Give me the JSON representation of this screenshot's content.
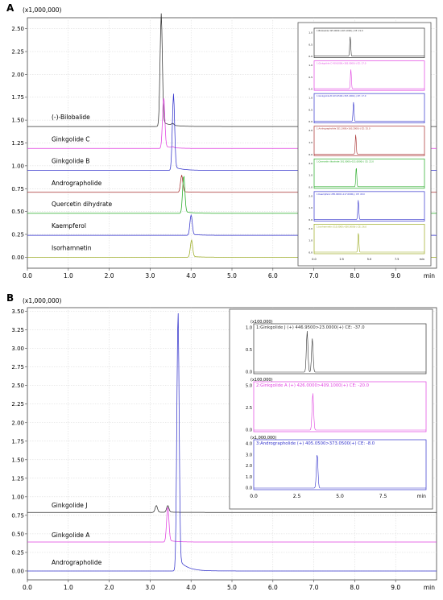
{
  "panels": [
    {
      "letter": "A",
      "multiplier": "(x1,000,000)",
      "x_ticks": [
        "0.0",
        "1.0",
        "2.0",
        "3.0",
        "4.0",
        "5.0",
        "6.0",
        "7.0",
        "8.0",
        "9.0"
      ],
      "x_unit": "min",
      "y_ticks": [
        "0.00",
        "0.25",
        "0.50",
        "0.75",
        "1.00",
        "1.25",
        "1.50",
        "1.75",
        "2.00",
        "2.25",
        "2.50"
      ],
      "traces": [
        {
          "name": "(-)-Bilobalide",
          "color": "#333333",
          "baseline": 1.43,
          "peaks": [
            [
              3.27,
              1.18
            ],
            [
              3.55,
              0.02
            ]
          ]
        },
        {
          "name": "Ginkgolide C",
          "color": "#e040e0",
          "baseline": 1.19,
          "peaks": [
            [
              3.33,
              0.55
            ],
            [
              3.55,
              0.01
            ]
          ]
        },
        {
          "name": "Ginkgolide B",
          "color": "#3333cc",
          "baseline": 0.95,
          "peaks": [
            [
              3.57,
              0.8
            ]
          ]
        },
        {
          "name": "Andrographolide",
          "color": "#a52a2a",
          "baseline": 0.71,
          "peaks": [
            [
              3.77,
              0.18
            ]
          ]
        },
        {
          "name": "Quercetin dihydrate",
          "color": "#22aa22",
          "baseline": 0.48,
          "peaks": [
            [
              3.82,
              0.4
            ]
          ]
        },
        {
          "name": "Kaempferol",
          "color": "#3333cc",
          "baseline": 0.24,
          "peaks": [
            [
              4.0,
              0.22
            ]
          ]
        },
        {
          "name": "Isorhamnetin",
          "color": "#9aaa20",
          "baseline": 0.0,
          "peaks": [
            [
              4.01,
              0.18
            ]
          ]
        }
      ],
      "inset": {
        "rows": [
          {
            "color": "#333333",
            "caption": "1:Bilobalide 325.0000>163.1000(-) CE: 21.0",
            "y_ticks": [
              "1.0",
              "0.5",
              "0.0"
            ]
          },
          {
            "color": "#e040e0",
            "caption": "1:Ginkgolide C 439.0000>383.0000(-) CE: 17.0",
            "y_ticks": [
              "1.0",
              "0.5",
              "0.0"
            ]
          },
          {
            "color": "#3333cc",
            "caption": "1:Ginkgolide B 423.0500>367.2000(-) CE: 17.0",
            "y_ticks": [
              "1.0",
              "0.5",
              "0.0"
            ]
          },
          {
            "color": "#a52a2a",
            "caption": "1:Andrographolide 351.1900>163.2000(-) CE: 25.0",
            "y_ticks": [
              "2.0",
              "1.0",
              "0.0"
            ]
          },
          {
            "color": "#22aa22",
            "caption": "1:Quercetin dihydrate 301.0000>151.0000(-) CE: 22.0",
            "y_ticks": [
              "2.0",
              "1.0",
              "0.0"
            ]
          },
          {
            "color": "#3333cc",
            "caption": "1:Kaempferol 285.0000>117.0000(-) CE: 45.0",
            "y_ticks": [
              "2.0",
              "1.0",
              "0.0"
            ]
          },
          {
            "color": "#9aaa20",
            "caption": "1:Isorhamnetin 315.0000>300.0000(-) CE: 26.0",
            "y_ticks": [
              "2.0",
              "1.0",
              "0.0"
            ]
          }
        ],
        "x_ticks": [
          "0.0",
          "2.5",
          "5.0",
          "7.5"
        ],
        "x_unit": "min"
      }
    },
    {
      "letter": "B",
      "multiplier": "(x1,000,000)",
      "x_ticks": [
        "0.0",
        "1.0",
        "2.0",
        "3.0",
        "4.0",
        "5.0",
        "6.0",
        "7.0",
        "8.0",
        "9.0"
      ],
      "x_unit": "min",
      "y_ticks": [
        "0.00",
        "0.25",
        "0.50",
        "0.75",
        "1.00",
        "1.25",
        "1.50",
        "1.75",
        "2.00",
        "2.25",
        "2.50",
        "2.75",
        "3.00",
        "3.25",
        "3.50"
      ],
      "traces": [
        {
          "name": "Ginkgolide J",
          "color": "#333333",
          "baseline": 0.79,
          "peaks": [
            [
              3.15,
              0.09
            ],
            [
              3.43,
              0.09
            ]
          ]
        },
        {
          "name": "Ginkgolide A",
          "color": "#e040e0",
          "baseline": 0.39,
          "peaks": [
            [
              3.43,
              0.47
            ]
          ]
        },
        {
          "name": "Andrographolide",
          "color": "#3333cc",
          "baseline": 0.0,
          "peaks": [
            [
              3.68,
              3.38
            ]
          ]
        }
      ],
      "inset": {
        "rows": [
          {
            "color": "#333333",
            "multiplier": "(x100,000)",
            "caption": "1:Ginkgolide J (+) 446.9500>23.0000(+) CE: -37.0",
            "y_ticks": [
              "1.0",
              "0.5",
              "0.0"
            ],
            "peaks": [
              [
                3.1,
                0.98
              ],
              [
                3.4,
                0.8
              ]
            ]
          },
          {
            "color": "#e040e0",
            "multiplier": "(x100,000)",
            "caption": "2:Ginkgolide A (+) 426.0000>409.1000(+) CE: -20.0",
            "y_ticks": [
              "5.0",
              "2.5",
              "0.0"
            ],
            "peaks": [
              [
                3.43,
                0.88
              ]
            ]
          },
          {
            "color": "#3333cc",
            "multiplier": "(x1,000,000)",
            "caption": "3:Andrographolide (+) 405.0500>373.0500(+) CE: -8.0",
            "y_ticks": [
              "4.0",
              "3.0",
              "2.0",
              "1.0",
              "0.0"
            ],
            "peaks": [
              [
                3.68,
                0.82
              ]
            ]
          }
        ],
        "x_ticks": [
          "0.0",
          "2.5",
          "5.0",
          "7.5"
        ],
        "x_unit": "min"
      }
    }
  ],
  "chart_data": [
    {
      "type": "line",
      "title": "",
      "xlabel": "min",
      "ylabel": "(x1,000,000)",
      "xlim": [
        0,
        10.0
      ],
      "ylim": [
        -0.12,
        2.62
      ],
      "grid": true,
      "series": [
        {
          "name": "(-)-Bilobalide",
          "baseline": 1.43,
          "peak_time": 3.27,
          "peak_apex": 2.61
        },
        {
          "name": "Ginkgolide C",
          "baseline": 1.19,
          "peak_time": 3.33,
          "peak_apex": 1.74
        },
        {
          "name": "Ginkgolide B",
          "baseline": 0.95,
          "peak_time": 3.57,
          "peak_apex": 1.75
        },
        {
          "name": "Andrographolide",
          "baseline": 0.71,
          "peak_time": 3.77,
          "peak_apex": 0.89
        },
        {
          "name": "Quercetin dihydrate",
          "baseline": 0.48,
          "peak_time": 3.82,
          "peak_apex": 0.88
        },
        {
          "name": "Kaempferol",
          "baseline": 0.24,
          "peak_time": 4.0,
          "peak_apex": 0.46
        },
        {
          "name": "Isorhamnetin",
          "baseline": 0.0,
          "peak_time": 4.01,
          "peak_apex": 0.18
        }
      ]
    },
    {
      "type": "line",
      "title": "",
      "xlabel": "min",
      "ylabel": "(x1,000,000)",
      "xlim": [
        0,
        10.0
      ],
      "ylim": [
        -0.12,
        3.55
      ],
      "grid": true,
      "series": [
        {
          "name": "Ginkgolide J",
          "baseline": 0.79,
          "peak_time": 3.15,
          "peak_apex": 0.88
        },
        {
          "name": "Ginkgolide A",
          "baseline": 0.39,
          "peak_time": 3.43,
          "peak_apex": 0.86
        },
        {
          "name": "Andrographolide",
          "baseline": 0.0,
          "peak_time": 3.68,
          "peak_apex": 3.38
        }
      ]
    }
  ]
}
